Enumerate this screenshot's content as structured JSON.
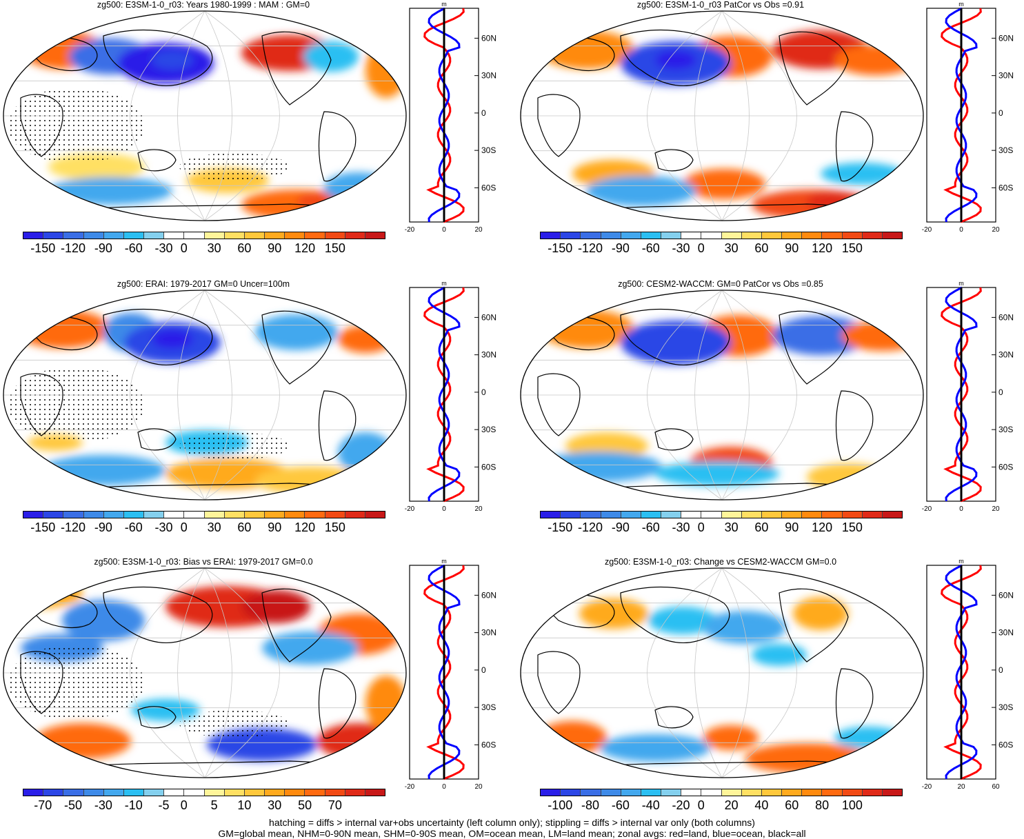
{
  "panels": [
    {
      "id": "p1",
      "title": "zg500: E3SM-1-0_r03: Years 1980-1999 : MAM : GM=0",
      "colorbar_labels": [
        "-150",
        "-120",
        "-90",
        "-60",
        "-30",
        "0",
        "30",
        "60",
        "90",
        "120",
        "150"
      ],
      "profile_x_ticks": [
        "-20",
        "0",
        "20"
      ],
      "profile_unit": "m",
      "stippled": true,
      "lat_labels": [
        "60N",
        "30N",
        "0",
        "30S",
        "60S"
      ]
    },
    {
      "id": "p2",
      "title": "zg500: E3SM-1-0_r03 PatCor vs Obs =0.91",
      "colorbar_labels": [
        "-150",
        "-120",
        "-90",
        "-60",
        "-30",
        "0",
        "30",
        "60",
        "90",
        "120",
        "150"
      ],
      "profile_x_ticks": [
        "-20",
        "0",
        "20"
      ],
      "profile_unit": "m",
      "stippled": false,
      "lat_labels": [
        "60N",
        "30N",
        "0",
        "30S",
        "60S"
      ]
    },
    {
      "id": "p3",
      "title": "zg500: ERAI: 1979-2017 GM=0 Uncer=100m",
      "colorbar_labels": [
        "-150",
        "-120",
        "-90",
        "-60",
        "-30",
        "0",
        "30",
        "60",
        "90",
        "120",
        "150"
      ],
      "profile_x_ticks": [
        "-20",
        "0",
        "20"
      ],
      "profile_unit": "m",
      "stippled": true,
      "lat_labels": [
        "60N",
        "30N",
        "0",
        "30S",
        "60S"
      ]
    },
    {
      "id": "p4",
      "title": "zg500: CESM2-WACCM: GM=0 PatCor vs Obs =0.85",
      "colorbar_labels": [
        "-150",
        "-120",
        "-90",
        "-60",
        "-30",
        "0",
        "30",
        "60",
        "90",
        "120",
        "150"
      ],
      "profile_x_ticks": [
        "-20",
        "0",
        "20"
      ],
      "profile_unit": "m",
      "stippled": false,
      "lat_labels": [
        "60N",
        "30N",
        "0",
        "30S",
        "60S"
      ]
    },
    {
      "id": "p5",
      "title": "zg500: E3SM-1-0_r03: Bias vs ERAI: 1979-2017 GM=0.0",
      "colorbar_labels": [
        "-70",
        "-50",
        "-30",
        "-10",
        "-5",
        "0",
        "5",
        "10",
        "30",
        "50",
        "70"
      ],
      "profile_x_ticks": [
        "-20",
        "0",
        "20"
      ],
      "profile_unit": "m",
      "stippled": true,
      "lat_labels": [
        "60N",
        "30N",
        "0",
        "30S",
        "60S"
      ]
    },
    {
      "id": "p6",
      "title": "zg500: E3SM-1-0_r03: Change vs CESM2-WACCM GM=0.0",
      "colorbar_labels": [
        "-100",
        "-80",
        "-60",
        "-40",
        "-20",
        "0",
        "20",
        "40",
        "60",
        "80",
        "100"
      ],
      "profile_x_ticks": [
        "-20",
        "20",
        "60"
      ],
      "profile_unit": "m",
      "stippled": false,
      "lat_labels": [
        "60N",
        "30N",
        "0",
        "30S",
        "60S"
      ]
    }
  ],
  "colormap": [
    "#2a1ee8",
    "#2c46e6",
    "#3a6ee6",
    "#3e8ae8",
    "#43a8ee",
    "#2bbff2",
    "#84d0ee",
    "#ffffff",
    "#ffffff",
    "#fff59a",
    "#ffe063",
    "#ffc83c",
    "#ffaa1e",
    "#ff8a0e",
    "#ff6a10",
    "#f24a14",
    "#e02a18",
    "#c81818"
  ],
  "zonal_colors": {
    "land": "#ff0000",
    "ocean": "#0000ff",
    "all": "#000000"
  },
  "footer": {
    "line1": "hatching = diffs > internal var+obs uncertainty (left column only); stippling = diffs > internal var only (both columns)",
    "line2": "GM=global mean, NHM=0-90N mean, SHM=0-90S mean, OM=ocean mean, LM=land mean; zonal avgs: red=land, blue=ocean, black=all"
  }
}
